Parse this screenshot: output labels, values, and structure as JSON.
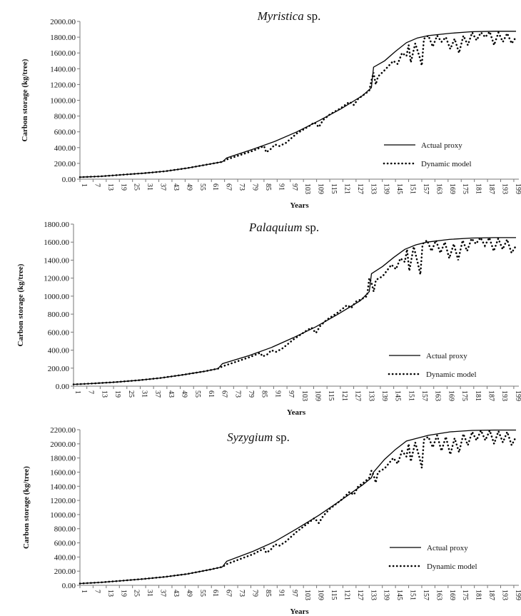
{
  "chart_data": [
    {
      "type": "line",
      "title_italic": "Myristica",
      "title_rest": " sp.",
      "xlabel": "Years",
      "ylabel": "Carbon storage (kg/tree)",
      "ylim": [
        0,
        2000
      ],
      "yticks": [
        "0.00",
        "200.00",
        "400.00",
        "600.00",
        "800.00",
        "1000.00",
        "1200.00",
        "1400.00",
        "1600.00",
        "1800.00",
        "2000.00"
      ],
      "xlim": [
        1,
        200
      ],
      "xticks": [
        "1",
        "7",
        "13",
        "19",
        "25",
        "31",
        "37",
        "43",
        "49",
        "55",
        "61",
        "67",
        "73",
        "79",
        "85",
        "91",
        "97",
        "103",
        "109",
        "115",
        "121",
        "127",
        "133",
        "139",
        "145",
        "151",
        "157",
        "163",
        "169",
        "175",
        "181",
        "187",
        "193",
        "199"
      ],
      "legend": [
        "Actual proxy",
        "Dynamic model"
      ],
      "series": [
        {
          "name": "Actual proxy",
          "style": "solid",
          "x": [
            1,
            10,
            20,
            30,
            40,
            50,
            60,
            66,
            68,
            80,
            90,
            100,
            110,
            120,
            130,
            134,
            135,
            140,
            145,
            150,
            155,
            160,
            170,
            180,
            190,
            200
          ],
          "y": [
            25,
            35,
            55,
            75,
            100,
            140,
            190,
            220,
            270,
            380,
            480,
            600,
            740,
            890,
            1060,
            1160,
            1420,
            1500,
            1620,
            1730,
            1790,
            1820,
            1850,
            1870,
            1875,
            1875
          ]
        },
        {
          "name": "Dynamic model",
          "style": "dotted",
          "x": [
            1,
            10,
            20,
            30,
            40,
            50,
            60,
            66,
            68,
            80,
            85,
            86,
            88,
            90,
            92,
            95,
            100,
            106,
            108,
            110,
            112,
            115,
            120,
            124,
            126,
            128,
            130,
            133,
            134,
            135,
            136,
            137,
            140,
            144,
            146,
            148,
            150,
            151,
            152,
            154,
            156,
            157,
            158,
            160,
            162,
            164,
            166,
            168,
            170,
            172,
            174,
            176,
            178,
            180,
            182,
            184,
            186,
            188,
            190,
            192,
            194,
            196,
            198,
            200
          ],
          "y": [
            25,
            35,
            55,
            75,
            100,
            140,
            190,
            220,
            250,
            360,
            420,
            340,
            380,
            440,
            420,
            460,
            580,
            680,
            720,
            660,
            750,
            820,
            900,
            980,
            940,
            1020,
            1060,
            1120,
            1250,
            1350,
            1200,
            1300,
            1380,
            1500,
            1460,
            1600,
            1560,
            1700,
            1480,
            1720,
            1550,
            1440,
            1780,
            1820,
            1680,
            1820,
            1740,
            1800,
            1650,
            1780,
            1600,
            1820,
            1700,
            1860,
            1760,
            1860,
            1800,
            1870,
            1700,
            1860,
            1740,
            1850,
            1720,
            1800
          ]
        }
      ]
    },
    {
      "type": "line",
      "title_italic": "Palaquium",
      "title_rest": " sp.",
      "xlabel": "Years",
      "ylabel": "Carbon storage (kg/tree)",
      "ylim": [
        0,
        1800
      ],
      "yticks": [
        "0.00",
        "200.00",
        "400.00",
        "600.00",
        "800.00",
        "1000.00",
        "1200.00",
        "1400.00",
        "1600.00",
        "1800.00"
      ],
      "xlim": [
        1,
        200
      ],
      "xticks": [
        "1",
        "7",
        "13",
        "19",
        "25",
        "31",
        "37",
        "43",
        "49",
        "55",
        "61",
        "67",
        "73",
        "79",
        "85",
        "91",
        "97",
        "103",
        "109",
        "115",
        "121",
        "127",
        "133",
        "139",
        "145",
        "151",
        "157",
        "163",
        "169",
        "175",
        "181",
        "187",
        "193",
        "199"
      ],
      "legend": [
        "Actual proxy",
        "Dynamic model"
      ],
      "series": [
        {
          "name": "Actual proxy",
          "style": "solid",
          "x": [
            1,
            10,
            20,
            30,
            40,
            50,
            60,
            66,
            68,
            80,
            90,
            100,
            110,
            120,
            130,
            134,
            135,
            140,
            145,
            150,
            155,
            160,
            170,
            180,
            190,
            200
          ],
          "y": [
            20,
            30,
            45,
            65,
            90,
            125,
            165,
            195,
            250,
            340,
            430,
            540,
            660,
            800,
            950,
            1050,
            1250,
            1330,
            1430,
            1520,
            1570,
            1600,
            1630,
            1645,
            1650,
            1650
          ]
        },
        {
          "name": "Dynamic model",
          "style": "dotted",
          "x": [
            1,
            10,
            20,
            30,
            40,
            50,
            60,
            66,
            68,
            80,
            85,
            86,
            88,
            90,
            92,
            95,
            100,
            106,
            108,
            110,
            112,
            115,
            120,
            124,
            126,
            128,
            130,
            133,
            134,
            135,
            136,
            137,
            140,
            144,
            146,
            148,
            150,
            151,
            152,
            154,
            156,
            157,
            158,
            160,
            162,
            164,
            166,
            168,
            170,
            172,
            174,
            176,
            178,
            180,
            182,
            184,
            186,
            188,
            190,
            192,
            194,
            196,
            198,
            200
          ],
          "y": [
            20,
            30,
            45,
            65,
            90,
            125,
            165,
            195,
            220,
            320,
            370,
            330,
            350,
            400,
            380,
            420,
            520,
            620,
            650,
            590,
            670,
            740,
            820,
            900,
            870,
            940,
            960,
            1000,
            1200,
            1150,
            1050,
            1180,
            1220,
            1350,
            1300,
            1420,
            1380,
            1520,
            1280,
            1550,
            1350,
            1240,
            1580,
            1620,
            1500,
            1620,
            1480,
            1600,
            1420,
            1580,
            1400,
            1620,
            1500,
            1640,
            1580,
            1650,
            1560,
            1650,
            1500,
            1640,
            1520,
            1630,
            1480,
            1560
          ]
        }
      ]
    },
    {
      "type": "line",
      "title_italic": "Syzygium",
      "title_rest": " sp.",
      "xlabel": "Years",
      "ylabel": "Carbon storage (kg/tree)",
      "ylim": [
        0,
        2200
      ],
      "yticks": [
        "0.00",
        "200.00",
        "400.00",
        "600.00",
        "800.00",
        "1000.00",
        "1200.00",
        "1400.00",
        "1600.00",
        "1800.00",
        "2000.00",
        "2200.00"
      ],
      "xlim": [
        1,
        200
      ],
      "xticks": [
        "1",
        "7",
        "13",
        "19",
        "25",
        "31",
        "37",
        "43",
        "49",
        "55",
        "61",
        "67",
        "73",
        "79",
        "85",
        "91",
        "97",
        "103",
        "109",
        "115",
        "121",
        "127",
        "133",
        "139",
        "145",
        "151",
        "157",
        "163",
        "169",
        "175",
        "181",
        "187",
        "193",
        "199"
      ],
      "legend": [
        "Actual proxy",
        "Dynamic model"
      ],
      "series": [
        {
          "name": "Actual proxy",
          "style": "solid",
          "x": [
            1,
            10,
            20,
            30,
            40,
            50,
            60,
            66,
            68,
            80,
            90,
            100,
            110,
            120,
            130,
            134,
            135,
            140,
            145,
            150,
            155,
            160,
            170,
            180,
            190,
            200
          ],
          "y": [
            25,
            40,
            65,
            90,
            120,
            160,
            220,
            260,
            340,
            480,
            620,
            800,
            990,
            1200,
            1420,
            1520,
            1600,
            1780,
            1920,
            2040,
            2080,
            2120,
            2170,
            2190,
            2195,
            2195
          ]
        },
        {
          "name": "Dynamic model",
          "style": "dotted",
          "x": [
            1,
            10,
            20,
            30,
            40,
            50,
            60,
            66,
            68,
            80,
            85,
            86,
            88,
            90,
            92,
            95,
            100,
            106,
            108,
            110,
            112,
            115,
            120,
            124,
            126,
            128,
            130,
            133,
            134,
            135,
            136,
            137,
            140,
            144,
            146,
            148,
            150,
            151,
            152,
            154,
            156,
            157,
            158,
            160,
            162,
            164,
            166,
            168,
            170,
            172,
            174,
            176,
            178,
            180,
            182,
            184,
            186,
            188,
            190,
            192,
            194,
            196,
            198,
            200
          ],
          "y": [
            25,
            40,
            65,
            90,
            120,
            160,
            220,
            260,
            300,
            440,
            520,
            460,
            500,
            580,
            560,
            620,
            760,
            900,
            950,
            880,
            980,
            1080,
            1200,
            1320,
            1280,
            1400,
            1440,
            1520,
            1620,
            1560,
            1450,
            1600,
            1650,
            1800,
            1720,
            1900,
            1820,
            2000,
            1750,
            2020,
            1800,
            1660,
            2060,
            2100,
            1950,
            2120,
            1900,
            2100,
            1850,
            2080,
            1880,
            2140,
            1980,
            2170,
            2050,
            2190,
            2050,
            2190,
            2000,
            2180,
            2020,
            2170,
            1980,
            2100
          ]
        }
      ]
    }
  ]
}
